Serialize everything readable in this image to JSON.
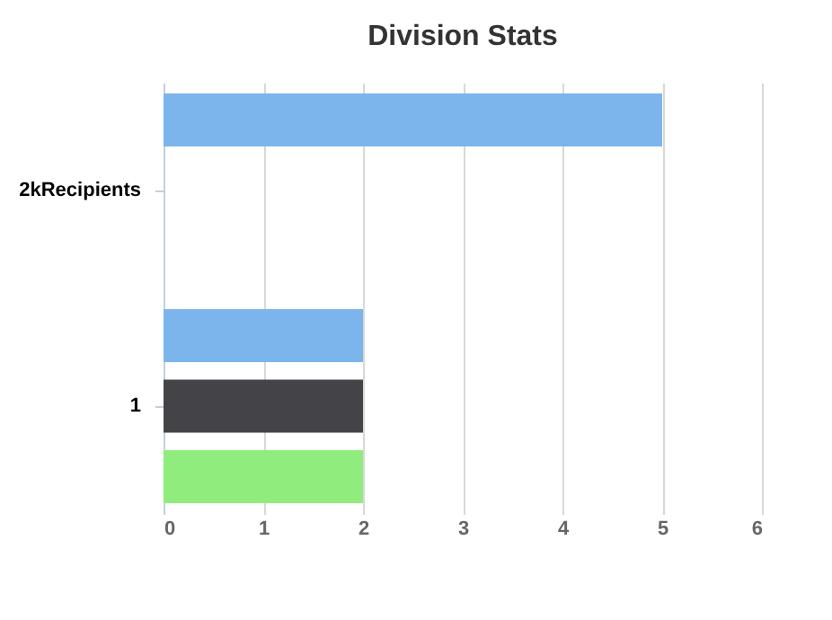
{
  "chart_data": {
    "type": "bar",
    "orientation": "horizontal",
    "title": "Division Stats",
    "categories": [
      "2kRecipients",
      "1"
    ],
    "series": [
      {
        "color": "#7cb5ec",
        "values": [
          5,
          2
        ]
      },
      {
        "color": "#434348",
        "values": [
          null,
          2
        ]
      },
      {
        "color": "#90ed7d",
        "values": [
          null,
          2
        ]
      }
    ],
    "xlim": [
      0,
      6
    ],
    "xticks": [
      0,
      1,
      2,
      3,
      4,
      5,
      6
    ],
    "grid": "x",
    "legend": false
  }
}
